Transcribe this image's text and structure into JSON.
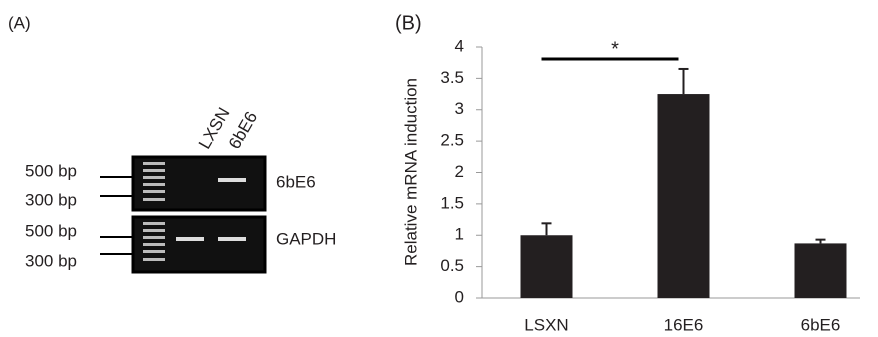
{
  "panel_a": {
    "label": "(A)",
    "lanes": [
      "LXSN",
      "6bE6"
    ],
    "rows": [
      {
        "gene": "6bE6",
        "markers": [
          "500 bp",
          "300 bp"
        ]
      },
      {
        "gene": "GAPDH",
        "markers": [
          "500 bp",
          "300 bp"
        ]
      }
    ]
  },
  "chart_data": {
    "type": "bar",
    "title": "(B)",
    "y_label": "Relative mRNA induction",
    "categories": [
      "LSXN",
      "16E6",
      "6bE6"
    ],
    "values": [
      1,
      3.25,
      0.87
    ],
    "errors": [
      0.19,
      0.4,
      0.06
    ],
    "color": "#231f20",
    "ylim": [
      0,
      4
    ],
    "yticks": [
      0,
      0.5,
      1,
      1.5,
      2,
      2.5,
      3,
      3.5,
      4
    ],
    "significance": "*"
  }
}
